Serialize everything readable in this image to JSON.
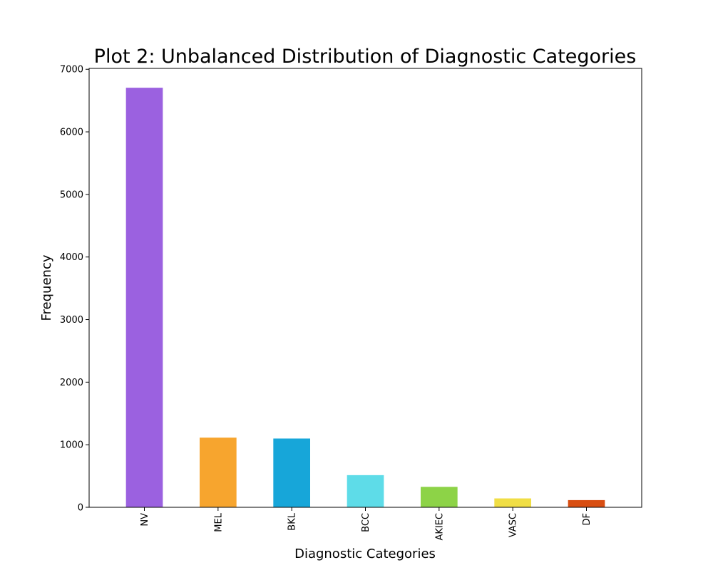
{
  "chart_data": {
    "type": "bar",
    "title": "Plot 2: Unbalanced Distribution of Diagnostic Categories",
    "xlabel": "Diagnostic Categories",
    "ylabel": "Frequency",
    "categories": [
      "NV",
      "MEL",
      "BKL",
      "BCC",
      "AKIEC",
      "VASC",
      "DF"
    ],
    "values": [
      6705,
      1113,
      1099,
      514,
      327,
      142,
      115
    ],
    "colors": [
      "#9b61e0",
      "#f7a52e",
      "#17a6d9",
      "#5edce8",
      "#8dd347",
      "#f0de45",
      "#d84e12"
    ],
    "ylim": [
      0,
      7014
    ],
    "yticks": [
      0,
      1000,
      2000,
      3000,
      4000,
      5000,
      6000,
      7000
    ],
    "grid": false,
    "legend": "none"
  }
}
